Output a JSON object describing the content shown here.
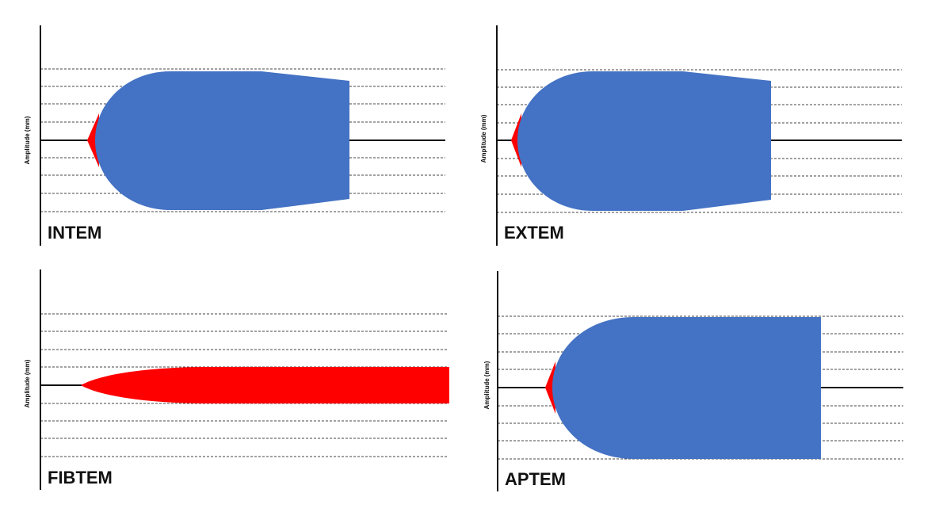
{
  "panels": [
    {
      "label": "INTEM",
      "axis_label": "Amplitude (mm)"
    },
    {
      "label": "EXTEM",
      "axis_label": "Amplitude (mm)"
    },
    {
      "label": "FIBTEM",
      "axis_label": "Amplitude (mm)"
    },
    {
      "label": "APTEM",
      "axis_label": "Amplitude (mm)"
    }
  ]
}
